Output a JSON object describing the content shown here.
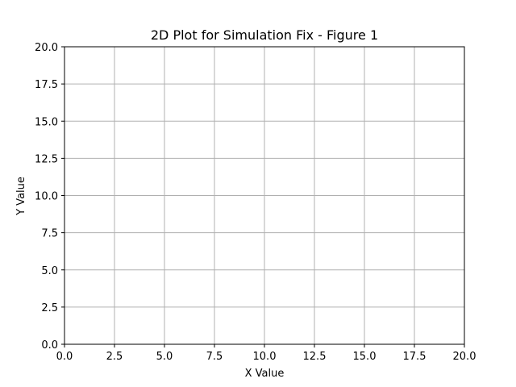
{
  "chart_data": {
    "type": "line",
    "title": "2D Plot for Simulation Fix - Figure 1",
    "xlabel": "X Value",
    "ylabel": "Y Value",
    "xlim": [
      0,
      20
    ],
    "ylim": [
      0,
      20
    ],
    "xticks": [
      0,
      2.5,
      5,
      7.5,
      10,
      12.5,
      15,
      17.5,
      20
    ],
    "yticks": [
      0,
      2.5,
      5,
      7.5,
      10,
      12.5,
      15,
      17.5,
      20
    ],
    "xtick_labels": [
      "0.0",
      "2.5",
      "5.0",
      "7.5",
      "10.0",
      "12.5",
      "15.0",
      "17.5",
      "20.0"
    ],
    "ytick_labels": [
      "0.0",
      "2.5",
      "5.0",
      "7.5",
      "10.0",
      "12.5",
      "15.0",
      "17.5",
      "20.0"
    ],
    "grid": true,
    "series": [],
    "colors": {
      "grid": "#b0b0b0",
      "axes": "#000000",
      "background": "#ffffff"
    }
  }
}
